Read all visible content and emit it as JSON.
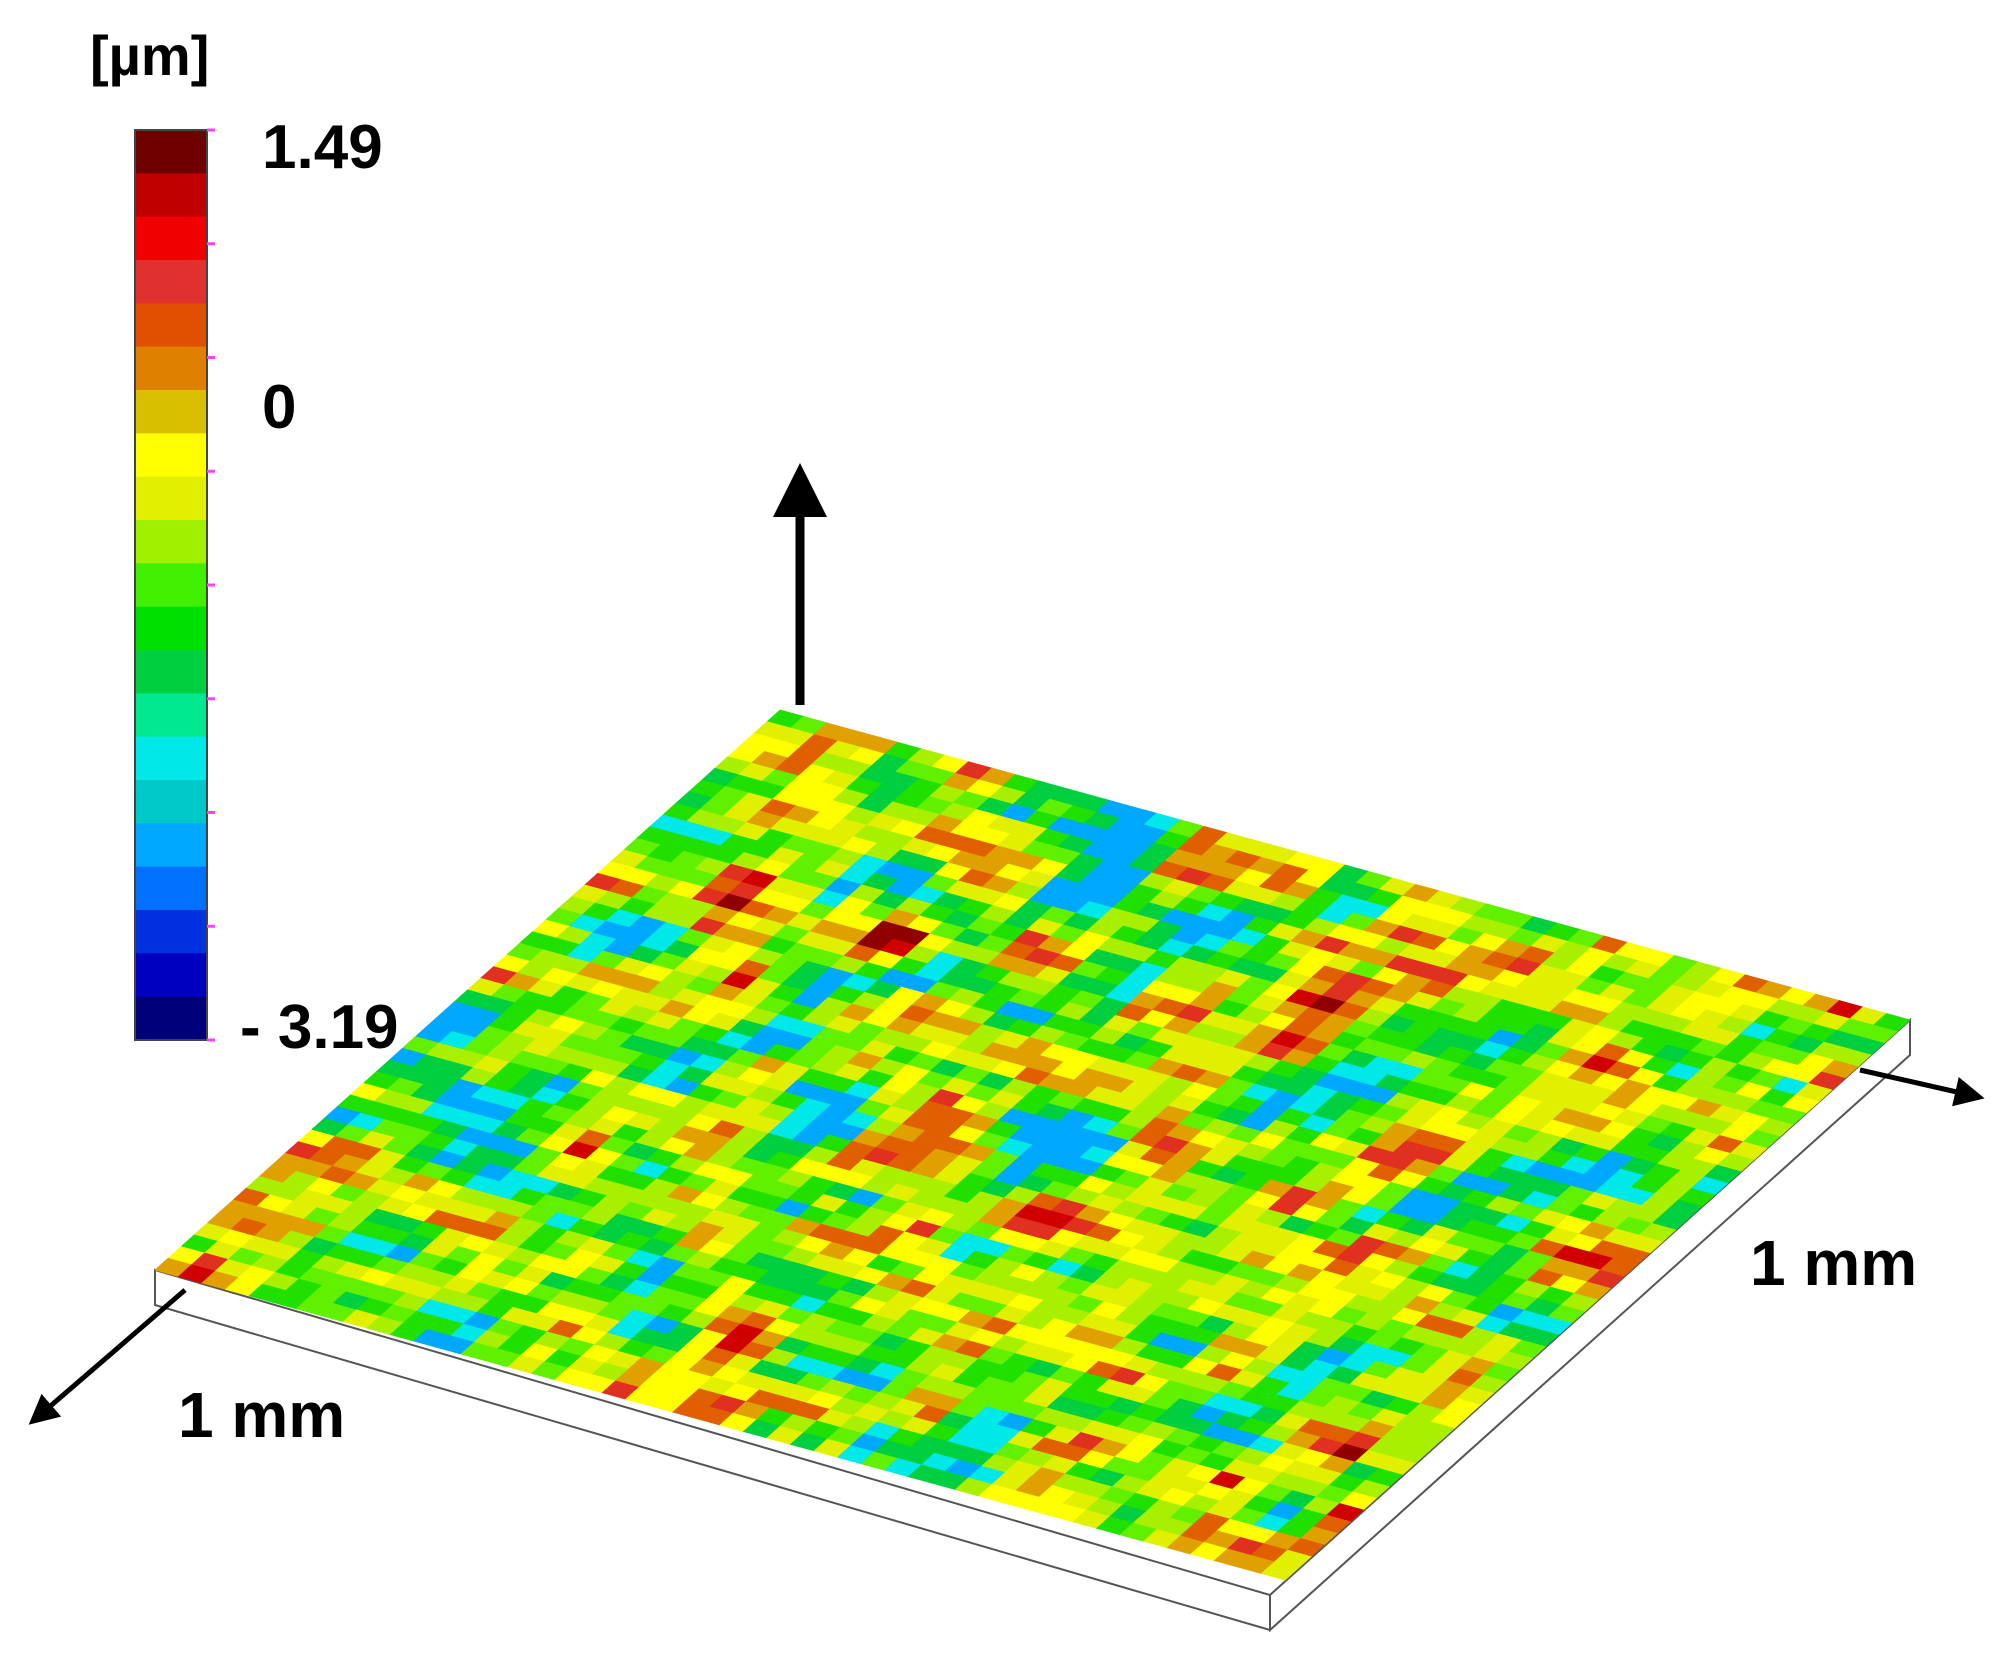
{
  "chart_data": {
    "type": "heatmap",
    "title": "",
    "colorbar": {
      "unit": "[µm]",
      "max_label": "1.49",
      "mid_label": "0",
      "min_label": "- 3.19",
      "range": [
        -3.19,
        1.49
      ],
      "colors": [
        "#00007a",
        "#0000c0",
        "#0030e0",
        "#0070ff",
        "#00a8ff",
        "#00c8c8",
        "#00e8e8",
        "#00e890",
        "#00d040",
        "#00e000",
        "#40f000",
        "#a0f000",
        "#e0f000",
        "#ffff00",
        "#d8c000",
        "#e08000",
        "#e05000",
        "#e03030",
        "#f00000",
        "#c00000",
        "#700000"
      ]
    },
    "axes": {
      "x": {
        "label": "1 mm",
        "range": [
          0,
          1
        ]
      },
      "y": {
        "label": "1 mm",
        "range": [
          0,
          1
        ]
      },
      "z": {
        "label": ""
      }
    },
    "surface": {
      "rows": 48,
      "cols": 48,
      "height_range": [
        -3.19,
        1.49
      ],
      "description_of_values": "surface roughness height field (µm) over a 1 mm × 1 mm area"
    }
  }
}
